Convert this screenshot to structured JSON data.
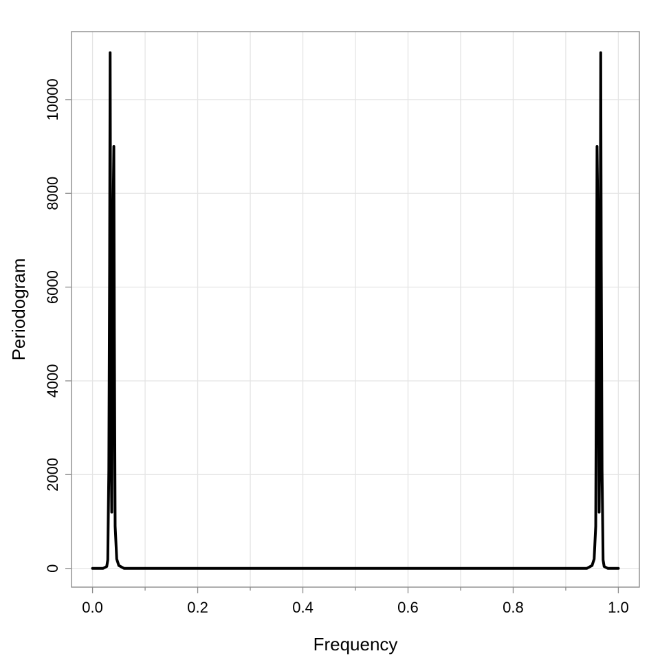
{
  "chart_data": {
    "type": "line",
    "title": "",
    "xlabel": "Frequency",
    "ylabel": "Periodogram",
    "xlim": [
      -0.04,
      1.04
    ],
    "ylim": [
      -400,
      11450
    ],
    "x_ticks": [
      0.0,
      0.2,
      0.4,
      0.6,
      0.8,
      1.0
    ],
    "x_tick_labels": [
      "0.0",
      "0.2",
      "0.4",
      "0.6",
      "0.8",
      "1.0"
    ],
    "x_minor_ticks": [
      0.1,
      0.3,
      0.5,
      0.7,
      0.9
    ],
    "y_ticks": [
      0,
      2000,
      4000,
      6000,
      8000,
      10000
    ],
    "y_tick_labels": [
      "0",
      "2000",
      "4000",
      "6000",
      "8000",
      "10000"
    ],
    "grid": true,
    "legend": "none",
    "series": [
      {
        "color": "#000000",
        "points": [
          [
            0.0,
            0
          ],
          [
            0.02,
            0
          ],
          [
            0.027,
            40
          ],
          [
            0.029,
            180
          ],
          [
            0.031,
            2100
          ],
          [
            0.0325,
            6500
          ],
          [
            0.0335,
            11000
          ],
          [
            0.0345,
            6000
          ],
          [
            0.0355,
            2500
          ],
          [
            0.0365,
            1200
          ],
          [
            0.0375,
            3500
          ],
          [
            0.039,
            7500
          ],
          [
            0.0405,
            9000
          ],
          [
            0.0415,
            5000
          ],
          [
            0.043,
            900
          ],
          [
            0.046,
            200
          ],
          [
            0.05,
            60
          ],
          [
            0.06,
            0
          ],
          [
            0.94,
            0
          ],
          [
            0.95,
            60
          ],
          [
            0.954,
            200
          ],
          [
            0.957,
            900
          ],
          [
            0.9585,
            5000
          ],
          [
            0.9595,
            9000
          ],
          [
            0.961,
            7500
          ],
          [
            0.9625,
            3500
          ],
          [
            0.9635,
            1200
          ],
          [
            0.9645,
            2500
          ],
          [
            0.9655,
            6000
          ],
          [
            0.9665,
            11000
          ],
          [
            0.9675,
            6500
          ],
          [
            0.969,
            2100
          ],
          [
            0.971,
            180
          ],
          [
            0.973,
            40
          ],
          [
            0.98,
            0
          ],
          [
            1.0,
            0
          ]
        ]
      }
    ]
  }
}
